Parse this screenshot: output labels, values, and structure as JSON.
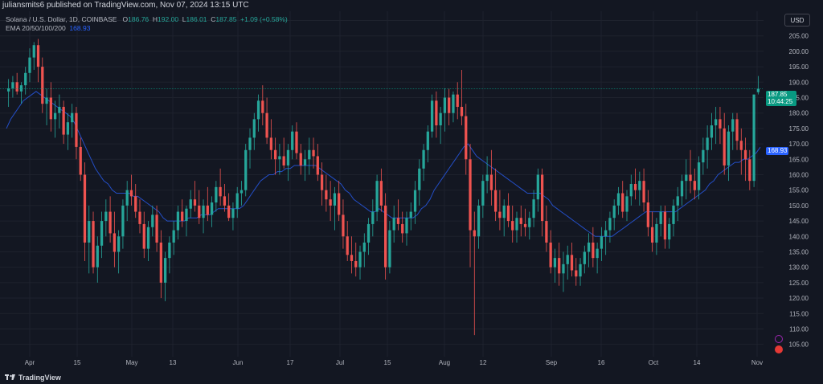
{
  "header": {
    "text": "juliansmits6 published on TradingView.com, Nov 07, 2024 13:15 UTC"
  },
  "legend": {
    "symbol": "Solana / U.S. Dollar, 1D, COINBASE",
    "o_label": "O",
    "o_val": "186.76",
    "h_label": "H",
    "h_val": "192.00",
    "l_label": "L",
    "l_val": "186.01",
    "c_label": "C",
    "c_val": "187.85",
    "change": "+1.09 (+0.58%)",
    "ema_label": "EMA 20/50/100/200",
    "ema_val": "168.93"
  },
  "currency": "USD",
  "last_price": {
    "price": "187.85",
    "countdown": "10:44:25",
    "value": 187.85
  },
  "ema_tag": {
    "price": "168.93",
    "value": 168.93
  },
  "footer": {
    "logo_text": "TradingView"
  },
  "colors": {
    "background": "#131722",
    "up": "#26a69a",
    "down": "#ef5350",
    "ema": "#2962ff",
    "grid": "#1e222d",
    "axis_text": "#b2b5be"
  },
  "chart_data": {
    "type": "candlestick",
    "symbol": "Solana / U.S. Dollar",
    "interval": "1D",
    "ylim": [
      101,
      213
    ],
    "y_ticks": [
      105,
      110,
      115,
      120,
      125,
      130,
      135,
      140,
      145,
      150,
      155,
      160,
      165,
      170,
      175,
      180,
      185,
      190,
      195,
      200,
      205,
      210
    ],
    "x_ticks": [
      "Apr",
      "15",
      "May",
      "13",
      "Jun",
      "17",
      "Jul",
      "15",
      "Aug",
      "12",
      "Sep",
      "16",
      "Oct",
      "14",
      "Nov"
    ],
    "grid": true,
    "ohlc": [
      [
        187,
        191,
        182,
        188
      ],
      [
        188,
        192,
        185,
        190
      ],
      [
        190,
        193,
        186,
        187
      ],
      [
        187,
        190,
        183,
        189
      ],
      [
        189,
        195,
        186,
        193
      ],
      [
        193,
        201,
        190,
        198
      ],
      [
        198,
        203,
        194,
        202
      ],
      [
        202,
        204,
        190,
        195
      ],
      [
        195,
        198,
        180,
        183
      ],
      [
        183,
        188,
        176,
        185
      ],
      [
        185,
        190,
        174,
        178
      ],
      [
        178,
        184,
        172,
        180
      ],
      [
        180,
        186,
        175,
        182
      ],
      [
        182,
        184,
        170,
        173
      ],
      [
        173,
        180,
        168,
        177
      ],
      [
        177,
        183,
        172,
        180
      ],
      [
        180,
        182,
        165,
        169
      ],
      [
        169,
        172,
        158,
        160
      ],
      [
        160,
        164,
        132,
        138
      ],
      [
        138,
        150,
        128,
        145
      ],
      [
        145,
        148,
        128,
        130
      ],
      [
        130,
        140,
        125,
        137
      ],
      [
        137,
        148,
        133,
        145
      ],
      [
        145,
        152,
        140,
        148
      ],
      [
        148,
        153,
        138,
        141
      ],
      [
        141,
        148,
        130,
        135
      ],
      [
        135,
        142,
        128,
        140
      ],
      [
        140,
        152,
        136,
        150
      ],
      [
        150,
        158,
        145,
        155
      ],
      [
        155,
        160,
        150,
        153
      ],
      [
        153,
        157,
        146,
        148
      ],
      [
        148,
        152,
        141,
        144
      ],
      [
        144,
        148,
        133,
        136
      ],
      [
        136,
        145,
        132,
        143
      ],
      [
        143,
        150,
        140,
        147
      ],
      [
        147,
        150,
        135,
        138
      ],
      [
        138,
        142,
        120,
        125
      ],
      [
        125,
        135,
        119,
        133
      ],
      [
        133,
        140,
        128,
        138
      ],
      [
        138,
        145,
        134,
        142
      ],
      [
        142,
        150,
        139,
        148
      ],
      [
        148,
        152,
        143,
        145
      ],
      [
        145,
        150,
        140,
        149
      ],
      [
        149,
        155,
        146,
        152
      ],
      [
        152,
        158,
        148,
        150
      ],
      [
        150,
        155,
        144,
        146
      ],
      [
        146,
        152,
        141,
        150
      ],
      [
        150,
        156,
        145,
        147
      ],
      [
        147,
        153,
        143,
        151
      ],
      [
        151,
        158,
        148,
        156
      ],
      [
        156,
        162,
        150,
        153
      ],
      [
        153,
        157,
        148,
        150
      ],
      [
        150,
        154,
        145,
        146
      ],
      [
        146,
        151,
        142,
        149
      ],
      [
        149,
        156,
        146,
        154
      ],
      [
        154,
        158,
        150,
        155
      ],
      [
        155,
        170,
        153,
        168
      ],
      [
        168,
        175,
        162,
        172
      ],
      [
        172,
        180,
        168,
        178
      ],
      [
        178,
        186,
        174,
        184
      ],
      [
        184,
        189,
        176,
        180
      ],
      [
        180,
        185,
        170,
        172
      ],
      [
        172,
        178,
        165,
        168
      ],
      [
        168,
        172,
        160,
        165
      ],
      [
        165,
        170,
        160,
        166
      ],
      [
        166,
        172,
        162,
        163
      ],
      [
        163,
        170,
        158,
        168
      ],
      [
        168,
        176,
        165,
        174
      ],
      [
        174,
        177,
        165,
        167
      ],
      [
        167,
        170,
        160,
        163
      ],
      [
        163,
        168,
        158,
        165
      ],
      [
        165,
        172,
        160,
        168
      ],
      [
        168,
        172,
        162,
        166
      ],
      [
        166,
        170,
        158,
        160
      ],
      [
        160,
        164,
        150,
        155
      ],
      [
        155,
        160,
        148,
        152
      ],
      [
        152,
        158,
        145,
        150
      ],
      [
        150,
        156,
        142,
        154
      ],
      [
        154,
        158,
        145,
        147
      ],
      [
        147,
        152,
        136,
        140
      ],
      [
        140,
        145,
        132,
        134
      ],
      [
        134,
        140,
        128,
        132
      ],
      [
        132,
        138,
        127,
        130
      ],
      [
        130,
        137,
        126,
        135
      ],
      [
        135,
        141,
        130,
        138
      ],
      [
        138,
        146,
        134,
        144
      ],
      [
        144,
        152,
        140,
        148
      ],
      [
        148,
        160,
        145,
        158
      ],
      [
        158,
        162,
        148,
        150
      ],
      [
        150,
        154,
        126,
        130
      ],
      [
        130,
        145,
        128,
        142
      ],
      [
        142,
        150,
        138,
        146
      ],
      [
        146,
        152,
        142,
        144
      ],
      [
        144,
        148,
        138,
        141
      ],
      [
        141,
        148,
        137,
        146
      ],
      [
        146,
        151,
        142,
        148
      ],
      [
        148,
        158,
        144,
        155
      ],
      [
        155,
        165,
        150,
        162
      ],
      [
        162,
        170,
        158,
        168
      ],
      [
        168,
        176,
        164,
        174
      ],
      [
        174,
        186,
        172,
        184
      ],
      [
        184,
        187,
        172,
        176
      ],
      [
        176,
        182,
        170,
        180
      ],
      [
        180,
        188,
        174,
        185
      ],
      [
        185,
        188,
        176,
        180
      ],
      [
        180,
        187,
        177,
        186
      ],
      [
        186,
        190,
        178,
        182
      ],
      [
        182,
        194,
        176,
        179
      ],
      [
        179,
        183,
        160,
        165
      ],
      [
        165,
        170,
        130,
        142
      ],
      [
        142,
        148,
        108,
        140
      ],
      [
        140,
        152,
        136,
        150
      ],
      [
        150,
        160,
        146,
        158
      ],
      [
        158,
        166,
        154,
        160
      ],
      [
        160,
        168,
        150,
        155
      ],
      [
        155,
        162,
        145,
        148
      ],
      [
        148,
        155,
        142,
        146
      ],
      [
        146,
        152,
        140,
        150
      ],
      [
        150,
        154,
        143,
        145
      ],
      [
        145,
        150,
        138,
        142
      ],
      [
        142,
        148,
        138,
        146
      ],
      [
        146,
        150,
        140,
        144
      ],
      [
        144,
        149,
        140,
        143
      ],
      [
        143,
        148,
        139,
        146
      ],
      [
        146,
        155,
        143,
        152
      ],
      [
        152,
        162,
        148,
        160
      ],
      [
        160,
        162,
        140,
        145
      ],
      [
        145,
        150,
        135,
        138
      ],
      [
        138,
        142,
        128,
        130
      ],
      [
        130,
        136,
        125,
        133
      ],
      [
        133,
        138,
        124,
        128
      ],
      [
        128,
        135,
        122,
        131
      ],
      [
        131,
        137,
        126,
        134
      ],
      [
        134,
        138,
        127,
        129
      ],
      [
        129,
        133,
        124,
        127
      ],
      [
        127,
        133,
        124,
        131
      ],
      [
        131,
        137,
        128,
        135
      ],
      [
        135,
        141,
        130,
        138
      ],
      [
        138,
        143,
        130,
        133
      ],
      [
        133,
        138,
        128,
        136
      ],
      [
        136,
        143,
        132,
        140
      ],
      [
        140,
        145,
        134,
        142
      ],
      [
        142,
        148,
        138,
        146
      ],
      [
        146,
        152,
        142,
        150
      ],
      [
        150,
        156,
        147,
        154
      ],
      [
        154,
        158,
        146,
        148
      ],
      [
        148,
        155,
        145,
        153
      ],
      [
        153,
        160,
        150,
        157
      ],
      [
        157,
        162,
        152,
        155
      ],
      [
        155,
        161,
        150,
        158
      ],
      [
        158,
        162,
        148,
        151
      ],
      [
        151,
        155,
        140,
        143
      ],
      [
        143,
        148,
        135,
        138
      ],
      [
        138,
        146,
        134,
        144
      ],
      [
        144,
        150,
        140,
        148
      ],
      [
        148,
        150,
        136,
        139
      ],
      [
        139,
        146,
        136,
        144
      ],
      [
        144,
        152,
        140,
        150
      ],
      [
        150,
        156,
        145,
        153
      ],
      [
        153,
        160,
        150,
        158
      ],
      [
        158,
        165,
        152,
        160
      ],
      [
        160,
        168,
        154,
        158
      ],
      [
        158,
        162,
        152,
        155
      ],
      [
        155,
        166,
        152,
        164
      ],
      [
        164,
        172,
        160,
        168
      ],
      [
        168,
        176,
        162,
        172
      ],
      [
        172,
        180,
        168,
        176
      ],
      [
        176,
        182,
        170,
        178
      ],
      [
        178,
        182,
        170,
        175
      ],
      [
        175,
        180,
        160,
        163
      ],
      [
        163,
        176,
        158,
        174
      ],
      [
        174,
        180,
        168,
        178
      ],
      [
        178,
        180,
        168,
        171
      ],
      [
        171,
        175,
        160,
        168
      ],
      [
        168,
        172,
        158,
        165
      ],
      [
        165,
        168,
        155,
        158
      ],
      [
        158,
        186,
        156,
        186
      ],
      [
        186.76,
        192,
        186.01,
        187.85
      ]
    ],
    "ema": [
      175,
      178,
      180,
      182,
      184,
      185,
      186,
      187,
      186,
      185,
      184,
      183,
      182,
      181,
      180,
      179,
      177,
      174,
      171,
      168,
      165,
      162,
      160,
      158,
      157,
      155,
      154,
      154,
      154,
      154,
      153,
      153,
      152,
      151,
      150,
      149,
      148,
      146,
      145,
      145,
      145,
      145,
      145,
      146,
      146,
      146,
      147,
      147,
      147,
      148,
      149,
      149,
      149,
      149,
      149,
      149,
      150,
      152,
      154,
      156,
      158,
      159,
      160,
      160,
      161,
      161,
      162,
      162,
      163,
      163,
      163,
      163,
      163,
      163,
      162,
      161,
      160,
      159,
      158,
      157,
      155,
      154,
      152,
      151,
      150,
      149,
      148,
      148,
      149,
      148,
      147,
      146,
      146,
      146,
      146,
      146,
      146,
      147,
      149,
      150,
      152,
      155,
      157,
      159,
      161,
      163,
      165,
      167,
      169,
      170,
      168,
      166,
      165,
      164,
      163,
      162,
      161,
      160,
      159,
      158,
      157,
      156,
      155,
      154,
      154,
      154,
      154,
      153,
      152,
      150,
      149,
      148,
      147,
      146,
      145,
      144,
      143,
      142,
      141,
      140,
      140,
      140,
      140,
      140,
      141,
      142,
      143,
      144,
      145,
      146,
      147,
      148,
      148,
      148,
      148,
      148,
      148,
      148,
      148,
      149,
      150,
      151,
      152,
      153,
      154,
      155,
      157,
      158,
      160,
      161,
      162,
      163,
      164,
      164,
      165,
      165,
      166,
      167,
      168.93
    ]
  }
}
